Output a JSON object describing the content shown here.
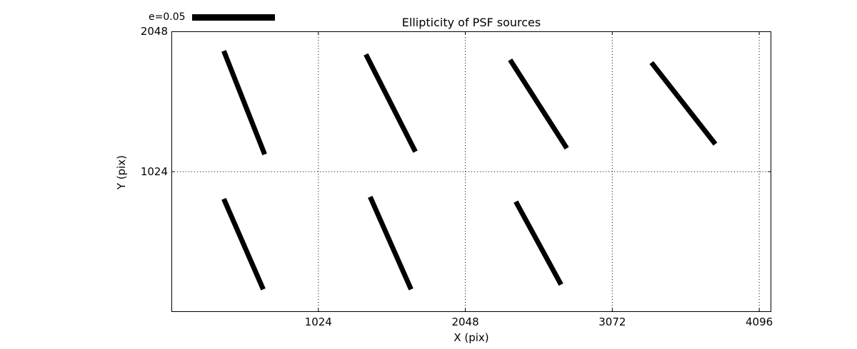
{
  "colors": {
    "foreground": "#000000",
    "background": "#ffffff"
  },
  "legend": {
    "label": "e=0.05"
  },
  "chart_data": {
    "type": "scatter",
    "title": "Ellipticity of PSF sources",
    "xlabel": "X (pix)",
    "ylabel": "Y (pix)",
    "xlim": [
      0,
      4180
    ],
    "ylim": [
      0,
      2048
    ],
    "xticks": [
      1024,
      2048,
      3072,
      4096
    ],
    "yticks": [
      1024,
      2048
    ],
    "grid": true,
    "legend_position": "top-left-outside",
    "legend_label": "e=0.05",
    "segments": [
      {
        "x1": 365,
        "y1": 1905,
        "x2": 650,
        "y2": 1150
      },
      {
        "x1": 1355,
        "y1": 1880,
        "x2": 1700,
        "y2": 1170
      },
      {
        "x1": 2360,
        "y1": 1840,
        "x2": 2755,
        "y2": 1195
      },
      {
        "x1": 3345,
        "y1": 1820,
        "x2": 3790,
        "y2": 1225
      },
      {
        "x1": 365,
        "y1": 825,
        "x2": 640,
        "y2": 165
      },
      {
        "x1": 1385,
        "y1": 840,
        "x2": 1670,
        "y2": 165
      },
      {
        "x1": 2400,
        "y1": 805,
        "x2": 2715,
        "y2": 200
      }
    ]
  }
}
